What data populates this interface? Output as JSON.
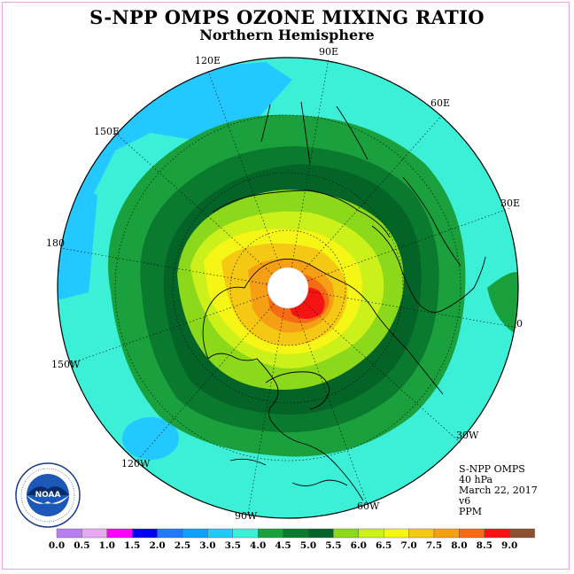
{
  "title": "S-NPP OMPS OZONE MIXING RATIO",
  "subtitle": "Northern Hemisphere",
  "longitude_labels": [
    "120E",
    "90E",
    "60E",
    "150E",
    "30E",
    "180",
    "0",
    "150W",
    "30W",
    "120W",
    "60W",
    "90W"
  ],
  "info": {
    "instrument": "S-NPP OMPS",
    "level": "40 hPa",
    "date": "March 22, 2017",
    "version": "v6",
    "units": "PPM"
  },
  "colorbar": {
    "ticks": [
      "0.0",
      "0.5",
      "1.0",
      "1.5",
      "2.0",
      "2.5",
      "3.0",
      "3.5",
      "4.0",
      "4.5",
      "5.0",
      "5.5",
      "6.0",
      "6.5",
      "7.0",
      "7.5",
      "8.0",
      "8.5",
      "9.0"
    ],
    "colors": [
      "#b87ef0",
      "#e6a8f0",
      "#ff00ff",
      "#0000ee",
      "#2278ff",
      "#11a0ff",
      "#22c8ff",
      "#3cf0d8",
      "#1aa03c",
      "#0a7a2e",
      "#046428",
      "#8cd81a",
      "#ccf01a",
      "#f5f516",
      "#f5c814",
      "#f5a014",
      "#f56a14",
      "#f51414",
      "#8a5030"
    ]
  },
  "logo_text": "NOAA",
  "map_colors": {
    "background_field": "#3cf0d8",
    "low_region": "#22c8ff",
    "peak_region": "#f51414",
    "outline": "#000000"
  }
}
